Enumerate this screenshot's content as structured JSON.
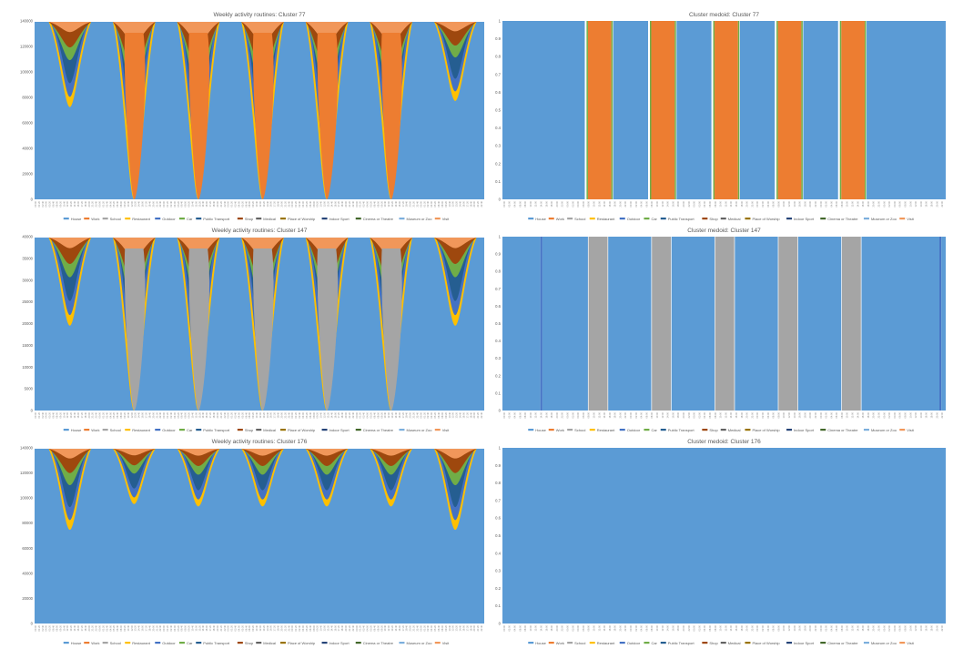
{
  "legend": [
    {
      "label": "House",
      "color": "#5b9bd5"
    },
    {
      "label": "Work",
      "color": "#ed7d31"
    },
    {
      "label": "School",
      "color": "#a5a5a5"
    },
    {
      "label": "Restaurant",
      "color": "#ffc000"
    },
    {
      "label": "Outdoor",
      "color": "#4472c4"
    },
    {
      "label": "Car",
      "color": "#70ad47"
    },
    {
      "label": "Public Transport",
      "color": "#255e91"
    },
    {
      "label": "Shop",
      "color": "#9e480e"
    },
    {
      "label": "Medical",
      "color": "#636363"
    },
    {
      "label": "Place of Worship",
      "color": "#997300"
    },
    {
      "label": "Indoor Sport",
      "color": "#264478"
    },
    {
      "label": "Cinema or Theatre",
      "color": "#43682b"
    },
    {
      "label": "Museum or Zoo",
      "color": "#7cafdd"
    },
    {
      "label": "Visit",
      "color": "#f1975a"
    }
  ],
  "chart_data": [
    {
      "type": "area",
      "stacked": true,
      "title": "Weekly activity routines: Cluster 77",
      "y_ticks": [
        "0",
        "20000",
        "40000",
        "60000",
        "80000",
        "100000",
        "120000",
        "140000"
      ],
      "ylim": [
        0,
        145000
      ],
      "x_tick_labels_repeat": [
        "00:00",
        "01:20",
        "02:40",
        "04:00",
        "05:20",
        "06:40",
        "08:00",
        "09:20",
        "10:40",
        "12:00",
        "13:20",
        "14:40",
        "16:00",
        "17:20",
        "18:40",
        "20:00",
        "21:20",
        "22:40"
      ],
      "days": 7,
      "primary_series": "Work",
      "day_dips": [
        {
          "day": 1,
          "work_min": null,
          "house_min": 75000
        },
        {
          "day": 2,
          "work_min": 0,
          "house_min": 0
        },
        {
          "day": 3,
          "work_min": 0,
          "house_min": 0
        },
        {
          "day": 4,
          "work_min": 0,
          "house_min": 0
        },
        {
          "day": 5,
          "work_min": 0,
          "house_min": 0
        },
        {
          "day": 6,
          "work_min": 0,
          "house_min": 0
        },
        {
          "day": 7,
          "work_min": null,
          "house_min": 80000
        }
      ]
    },
    {
      "type": "bar",
      "title": "Cluster medoid: Cluster 77",
      "y_ticks": [
        "0",
        "0.1",
        "0.2",
        "0.3",
        "0.4",
        "0.5",
        "0.6",
        "0.7",
        "0.8",
        "0.9",
        "1"
      ],
      "ylim": [
        0,
        1
      ],
      "x_tick_labels_repeat": [
        "00:00",
        "02:00",
        "04:00",
        "06:00",
        "08:00",
        "10:00",
        "12:00",
        "14:00",
        "16:00",
        "18:00",
        "20:00",
        "22:00"
      ],
      "segments": [
        {
          "activity": "House",
          "from_day": 1,
          "to_day": 2.3
        },
        {
          "activity": "Work",
          "from_day": 2.35,
          "to_day": 2.72
        },
        {
          "activity": "House",
          "from_day": 2.75,
          "to_day": 3.3
        },
        {
          "activity": "Work",
          "from_day": 3.35,
          "to_day": 3.72
        },
        {
          "activity": "House",
          "from_day": 3.75,
          "to_day": 4.3
        },
        {
          "activity": "Work",
          "from_day": 4.35,
          "to_day": 4.72
        },
        {
          "activity": "House",
          "from_day": 4.75,
          "to_day": 5.3
        },
        {
          "activity": "Work",
          "from_day": 5.35,
          "to_day": 5.72
        },
        {
          "activity": "House",
          "from_day": 5.75,
          "to_day": 6.3
        },
        {
          "activity": "Work",
          "from_day": 6.35,
          "to_day": 6.72
        },
        {
          "activity": "House",
          "from_day": 6.75,
          "to_day": 8
        }
      ]
    },
    {
      "type": "area",
      "stacked": true,
      "title": "Weekly activity routines: Cluster 147",
      "y_ticks": [
        "0",
        "5000",
        "10000",
        "15000",
        "20000",
        "25000",
        "30000",
        "35000",
        "40000"
      ],
      "ylim": [
        0,
        43000
      ],
      "x_tick_labels_repeat": [
        "00:00",
        "01:20",
        "02:40",
        "04:00",
        "05:20",
        "06:40",
        "08:00",
        "09:20",
        "10:40",
        "12:00",
        "13:20",
        "14:40",
        "16:00",
        "17:20",
        "18:40",
        "20:00",
        "21:20",
        "22:40"
      ],
      "days": 7,
      "primary_series": "School",
      "day_dips": [
        {
          "day": 1,
          "school_min": null,
          "house_min": 21000
        },
        {
          "day": 2,
          "school_min": 0,
          "house_min": 0
        },
        {
          "day": 3,
          "school_min": 0,
          "house_min": 0
        },
        {
          "day": 4,
          "school_min": 0,
          "house_min": 0
        },
        {
          "day": 5,
          "school_min": 0,
          "house_min": 0
        },
        {
          "day": 6,
          "school_min": 0,
          "house_min": 0
        },
        {
          "day": 7,
          "school_min": null,
          "house_min": 21000
        }
      ]
    },
    {
      "type": "bar",
      "title": "Cluster medoid: Cluster 147",
      "y_ticks": [
        "0",
        "0.1",
        "0.2",
        "0.3",
        "0.4",
        "0.5",
        "0.6",
        "0.7",
        "0.8",
        "0.9",
        "1"
      ],
      "ylim": [
        0,
        1
      ],
      "x_tick_labels_repeat": [
        "00:00",
        "02:00",
        "04:00",
        "06:00",
        "08:00",
        "10:00",
        "12:00",
        "14:00",
        "16:00",
        "18:00",
        "20:00",
        "22:00"
      ],
      "segments": [
        {
          "activity": "House",
          "from_day": 1,
          "to_day": 1.6
        },
        {
          "activity": "Outdoor",
          "from_day": 1.6,
          "to_day": 1.63
        },
        {
          "activity": "House",
          "from_day": 1.63,
          "to_day": 2.35
        },
        {
          "activity": "School",
          "from_day": 2.36,
          "to_day": 2.66
        },
        {
          "activity": "House",
          "from_day": 2.67,
          "to_day": 3.35
        },
        {
          "activity": "School",
          "from_day": 3.36,
          "to_day": 3.66
        },
        {
          "activity": "House",
          "from_day": 3.67,
          "to_day": 4.35
        },
        {
          "activity": "School",
          "from_day": 4.36,
          "to_day": 4.66
        },
        {
          "activity": "House",
          "from_day": 4.67,
          "to_day": 5.35
        },
        {
          "activity": "School",
          "from_day": 5.36,
          "to_day": 5.66
        },
        {
          "activity": "House",
          "from_day": 5.67,
          "to_day": 6.35
        },
        {
          "activity": "School",
          "from_day": 6.36,
          "to_day": 6.66
        },
        {
          "activity": "House",
          "from_day": 6.67,
          "to_day": 7.9
        },
        {
          "activity": "Outdoor",
          "from_day": 7.9,
          "to_day": 7.93
        },
        {
          "activity": "House",
          "from_day": 7.93,
          "to_day": 8
        }
      ]
    },
    {
      "type": "area",
      "stacked": true,
      "title": "Weekly activity routines: Cluster 176",
      "y_ticks": [
        "0",
        "20000",
        "40000",
        "60000",
        "80000",
        "100000",
        "120000",
        "140000"
      ],
      "ylim": [
        0,
        150000
      ],
      "x_tick_labels_repeat": [
        "00:00",
        "01:20",
        "02:40",
        "04:00",
        "05:20",
        "06:40",
        "08:00",
        "09:20",
        "10:40",
        "12:00",
        "13:20",
        "14:40",
        "16:00",
        "17:20",
        "18:40",
        "20:00",
        "21:20",
        "22:40"
      ],
      "days": 7,
      "primary_series": "House",
      "day_dips": [
        {
          "day": 1,
          "house_min": 80000
        },
        {
          "day": 2,
          "house_min": 102000
        },
        {
          "day": 3,
          "house_min": 100000
        },
        {
          "day": 4,
          "house_min": 100000
        },
        {
          "day": 5,
          "house_min": 100000
        },
        {
          "day": 6,
          "house_min": 100000
        },
        {
          "day": 7,
          "house_min": 80000
        }
      ]
    },
    {
      "type": "bar",
      "title": "Cluster medoid: Cluster 176",
      "y_ticks": [
        "0",
        "0.1",
        "0.2",
        "0.3",
        "0.4",
        "0.5",
        "0.6",
        "0.7",
        "0.8",
        "0.9",
        "1"
      ],
      "ylim": [
        0,
        1
      ],
      "x_tick_labels_repeat": [
        "00:00",
        "02:00",
        "04:00",
        "06:00",
        "08:00",
        "10:00",
        "12:00",
        "14:00",
        "16:00",
        "18:00",
        "20:00",
        "22:00"
      ],
      "segments": [
        {
          "activity": "House",
          "from_day": 1,
          "to_day": 8
        }
      ]
    }
  ]
}
